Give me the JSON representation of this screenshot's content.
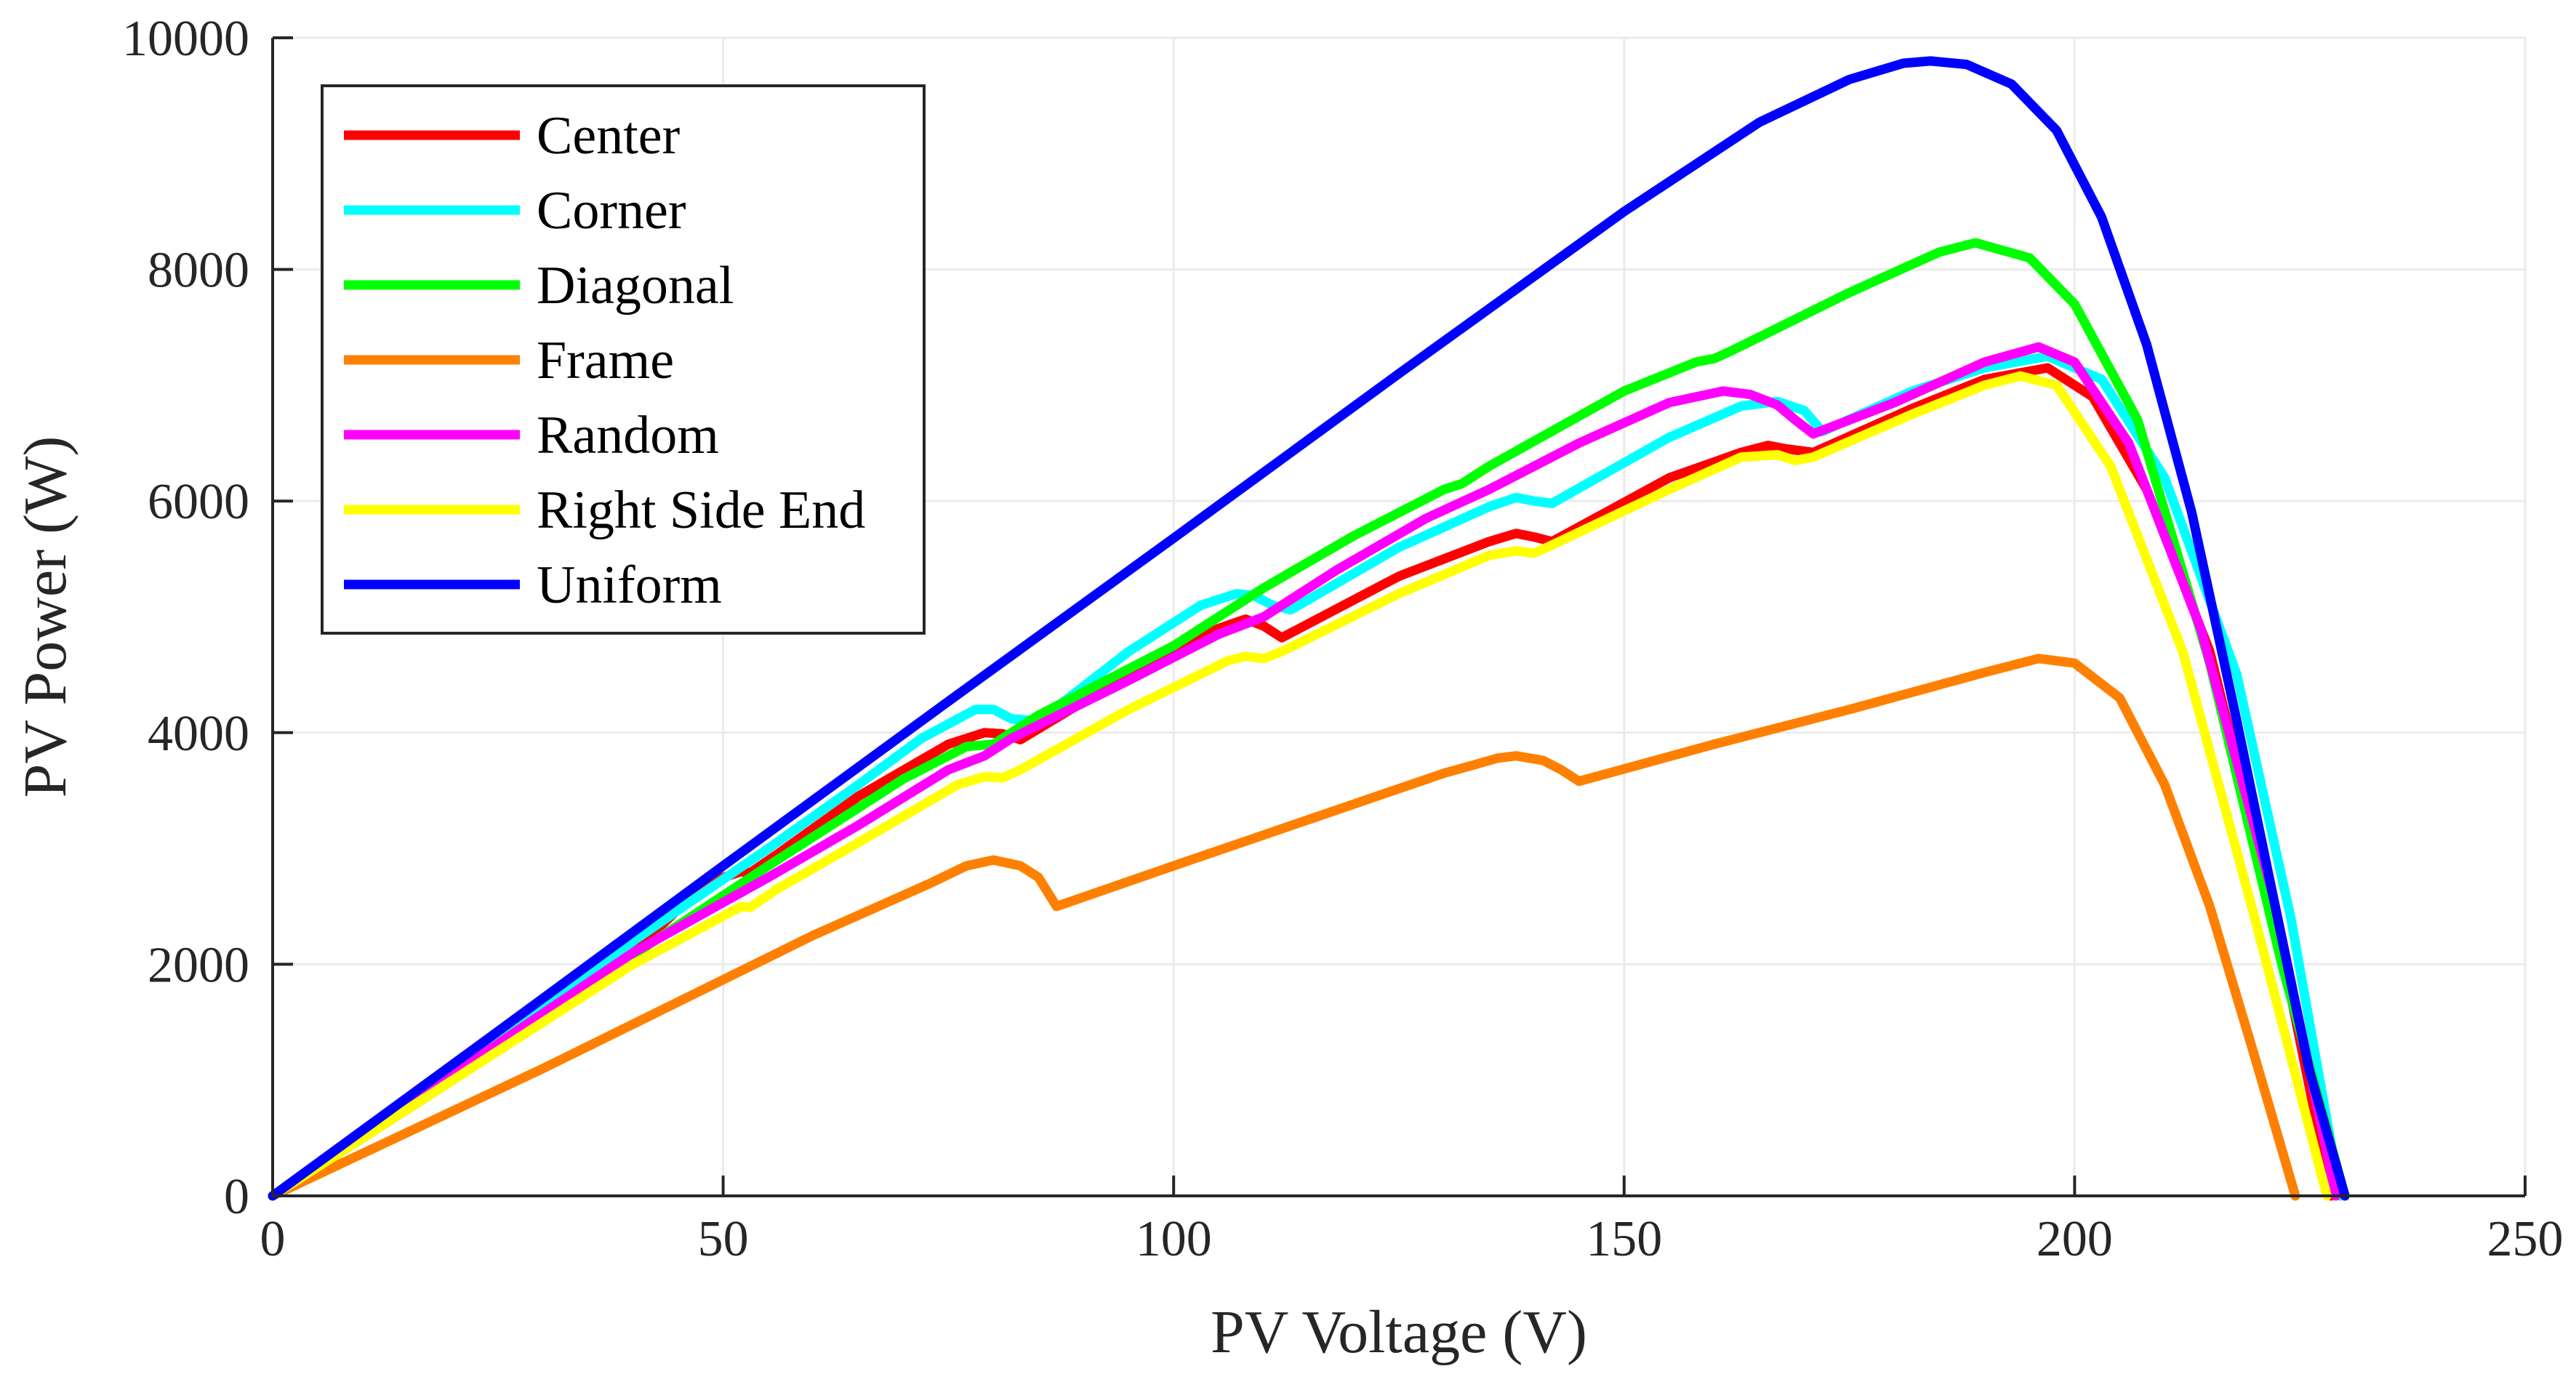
{
  "chart_data": {
    "type": "line",
    "xlabel": "PV Voltage (V)",
    "ylabel": "PV Power (W)",
    "xlim": [
      0,
      250
    ],
    "ylim": [
      0,
      10000
    ],
    "xticks": [
      0,
      50,
      100,
      150,
      200,
      250
    ],
    "yticks": [
      0,
      2000,
      4000,
      6000,
      8000,
      10000
    ],
    "grid": true,
    "legend_position": "top-left",
    "series": [
      {
        "name": "Center",
        "color": "#ff0000",
        "x": [
          0,
          20,
          40,
          48,
          52,
          53,
          56,
          65,
          75,
          79,
          81,
          83,
          95,
          105,
          108,
          110,
          112,
          125,
          135,
          138,
          140,
          142,
          155,
          163,
          166,
          168,
          171,
          182,
          190,
          197,
          202,
          208,
          215,
          222,
          228.5
        ],
        "y": [
          0,
          1000,
          2100,
          2700,
          2800,
          2790,
          2950,
          3450,
          3900,
          4000,
          3990,
          3940,
          4500,
          4900,
          4980,
          4920,
          4820,
          5350,
          5650,
          5720,
          5690,
          5650,
          6200,
          6420,
          6480,
          6450,
          6420,
          6800,
          7050,
          7150,
          6900,
          6100,
          4700,
          2500,
          0
        ]
      },
      {
        "name": "Corner",
        "color": "#00ffff",
        "x": [
          0,
          20,
          40,
          55,
          65,
          72,
          78,
          80,
          82,
          85,
          95,
          103,
          107,
          109,
          111,
          113,
          125,
          135,
          138,
          140,
          142,
          155,
          163,
          167,
          170,
          172,
          182,
          190,
          197,
          203,
          210,
          218,
          224,
          229.5
        ],
        "y": [
          0,
          1050,
          2200,
          3000,
          3550,
          3950,
          4200,
          4200,
          4120,
          4100,
          4700,
          5100,
          5200,
          5180,
          5100,
          5060,
          5600,
          5950,
          6030,
          6000,
          5980,
          6550,
          6820,
          6860,
          6780,
          6600,
          6950,
          7150,
          7250,
          7050,
          6200,
          4500,
          2400,
          0
        ]
      },
      {
        "name": "Diagonal",
        "color": "#00ff00",
        "x": [
          0,
          20,
          40,
          55,
          70,
          77,
          80,
          85,
          100,
          110,
          120,
          130,
          132,
          135,
          150,
          158,
          160,
          162,
          175,
          185,
          189,
          195,
          200,
          207,
          215,
          223,
          230
        ],
        "y": [
          0,
          1020,
          2080,
          2850,
          3600,
          3880,
          3900,
          4150,
          4750,
          5250,
          5700,
          6100,
          6150,
          6300,
          6950,
          7200,
          7230,
          7300,
          7800,
          8150,
          8230,
          8100,
          7700,
          6700,
          4600,
          2000,
          0
        ]
      },
      {
        "name": "Frame",
        "color": "#ff8000",
        "x": [
          0,
          30,
          60,
          73,
          77,
          80,
          83,
          85,
          87,
          100,
          115,
          130,
          136,
          138,
          141,
          143,
          145,
          160,
          175,
          190,
          196,
          200,
          205,
          210,
          215,
          220,
          224.5
        ],
        "y": [
          0,
          1100,
          2250,
          2700,
          2850,
          2900,
          2850,
          2750,
          2500,
          2850,
          3250,
          3650,
          3780,
          3800,
          3760,
          3680,
          3580,
          3900,
          4200,
          4520,
          4640,
          4600,
          4300,
          3550,
          2500,
          1200,
          0
        ]
      },
      {
        "name": "Random",
        "color": "#ff00ff",
        "x": [
          0,
          20,
          40,
          55,
          65,
          75,
          79,
          82,
          95,
          105,
          110,
          118,
          128,
          135,
          145,
          155,
          161,
          164,
          167,
          169,
          171,
          180,
          190,
          196,
          200,
          206,
          214,
          222,
          229
        ],
        "y": [
          0,
          1050,
          2100,
          2750,
          3200,
          3680,
          3800,
          3950,
          4450,
          4850,
          5000,
          5400,
          5850,
          6100,
          6500,
          6850,
          6950,
          6920,
          6830,
          6700,
          6580,
          6850,
          7200,
          7330,
          7200,
          6500,
          4900,
          2600,
          0
        ]
      },
      {
        "name": "Right Side End",
        "color": "#ffff00",
        "x": [
          0,
          20,
          40,
          52,
          53,
          56,
          65,
          76,
          79,
          81,
          83,
          95,
          106,
          108,
          110,
          112,
          125,
          135,
          138,
          140,
          142,
          155,
          163,
          167,
          169,
          171,
          182,
          190,
          194,
          198,
          204,
          212,
          220,
          228
        ],
        "y": [
          0,
          1000,
          2000,
          2500,
          2490,
          2650,
          3050,
          3550,
          3620,
          3610,
          3680,
          4200,
          4620,
          4660,
          4640,
          4700,
          5200,
          5530,
          5570,
          5550,
          5620,
          6100,
          6380,
          6400,
          6350,
          6380,
          6750,
          7000,
          7080,
          7000,
          6300,
          4700,
          2400,
          0
        ]
      },
      {
        "name": "Uniform",
        "color": "#0000ff",
        "x": [
          0,
          25,
          50,
          75,
          100,
          125,
          150,
          165,
          175,
          181,
          184,
          188,
          193,
          198,
          203,
          208,
          213,
          218,
          222,
          226,
          230
        ],
        "y": [
          0,
          1420,
          2850,
          4270,
          5680,
          7100,
          8500,
          9270,
          9640,
          9780,
          9800,
          9770,
          9600,
          9200,
          8450,
          7350,
          5900,
          4100,
          2600,
          1100,
          0
        ]
      }
    ]
  }
}
